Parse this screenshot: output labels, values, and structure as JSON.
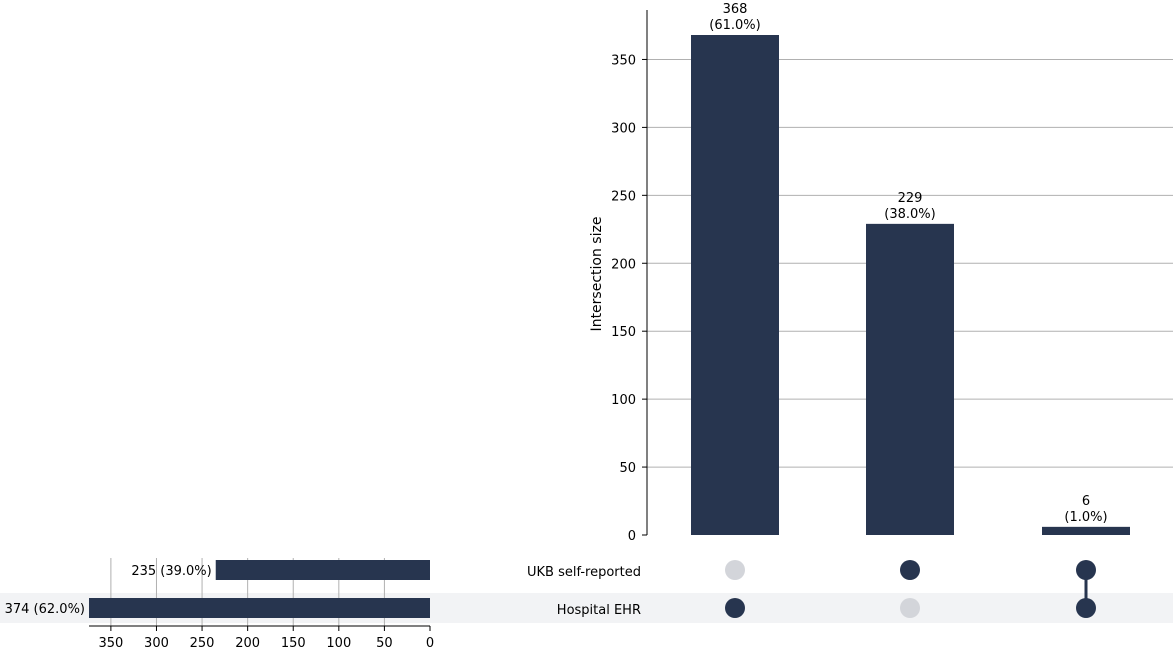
{
  "chart_data": {
    "type": "upset",
    "bar_color": "#27354f",
    "inactive_dot_color": "#d3d5da",
    "stripe_color": "#f2f3f5",
    "intersections": {
      "ylabel": "Intersection size",
      "ylim": [
        0,
        385
      ],
      "yticks": [
        0,
        50,
        100,
        150,
        200,
        250,
        300,
        350
      ],
      "grid": true,
      "values": [
        368,
        229,
        6
      ],
      "labels": [
        [
          "368",
          "(61.0%)"
        ],
        [
          "229",
          "(38.0%)"
        ],
        [
          "6",
          "(1.0%)"
        ]
      ],
      "membership": [
        {
          "UKB self-reported": false,
          "Hospital EHR": true
        },
        {
          "UKB self-reported": true,
          "Hospital EHR": false
        },
        {
          "UKB self-reported": true,
          "Hospital EHR": true
        }
      ]
    },
    "sets": {
      "names": [
        "UKB self-reported",
        "Hospital EHR"
      ],
      "values": [
        235,
        374
      ],
      "labels": [
        "235 (39.0%)",
        "374 (62.0%)"
      ],
      "xlim": [
        0,
        374
      ],
      "xticks": [
        350,
        300,
        250,
        200,
        150,
        100,
        50,
        0
      ]
    }
  }
}
